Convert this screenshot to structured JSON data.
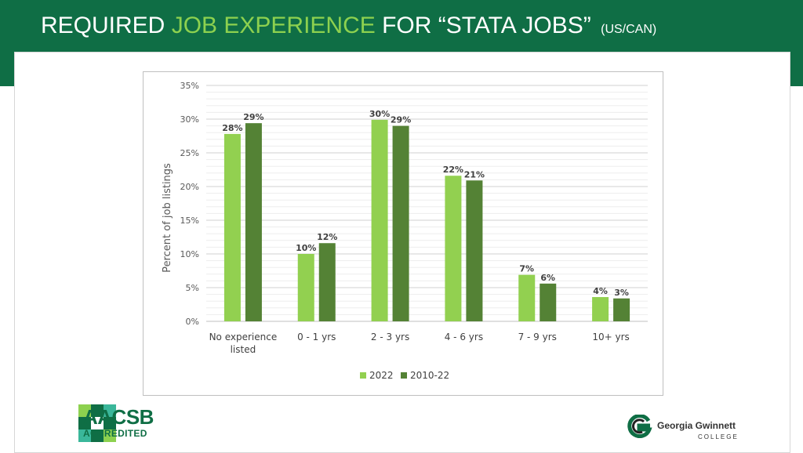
{
  "slide": {
    "title_part1": "REQUIRED ",
    "title_accent": "JOB EXPERIENCE",
    "title_part2": " FOR “STATA JOBS”",
    "title_small": "(US/CAN)",
    "colors": {
      "header_bg": "#0f6e45",
      "accent": "#8dd14f",
      "series_2022": "#92d050",
      "series_2010_22": "#548235"
    }
  },
  "logos": {
    "aacsb_name": "AACSB",
    "aacsb_sub": "ACCREDITED",
    "ggc_name": "Georgia Gwinnett",
    "ggc_sub": "COLLEGE",
    "aacsb_icon": "aacsb-logo-icon",
    "ggc_icon": "ggc-logo-icon"
  },
  "chart_data": {
    "type": "bar",
    "title": "",
    "xlabel": "",
    "ylabel": "Percent of job listings",
    "ylim": [
      0,
      35
    ],
    "yticks": [
      "0%",
      "5%",
      "10%",
      "15%",
      "20%",
      "25%",
      "30%",
      "35%"
    ],
    "categories": [
      "No experience listed",
      "0 - 1 yrs",
      "2 - 3 yrs",
      "4 - 6 yrs",
      "7 - 9 yrs",
      "10+ yrs"
    ],
    "series": [
      {
        "name": "2022",
        "values": [
          27.8,
          10.0,
          29.9,
          21.6,
          6.9,
          3.6
        ],
        "labels": [
          "28%",
          "10%",
          "30%",
          "22%",
          "7%",
          "4%"
        ],
        "color": "#92d050"
      },
      {
        "name": "2010-22",
        "values": [
          29.4,
          11.6,
          29.0,
          20.9,
          5.6,
          3.4
        ],
        "labels": [
          "29%",
          "12%",
          "29%",
          "21%",
          "6%",
          "3%"
        ],
        "color": "#548235"
      }
    ],
    "grid": true,
    "legend": "bottom"
  }
}
